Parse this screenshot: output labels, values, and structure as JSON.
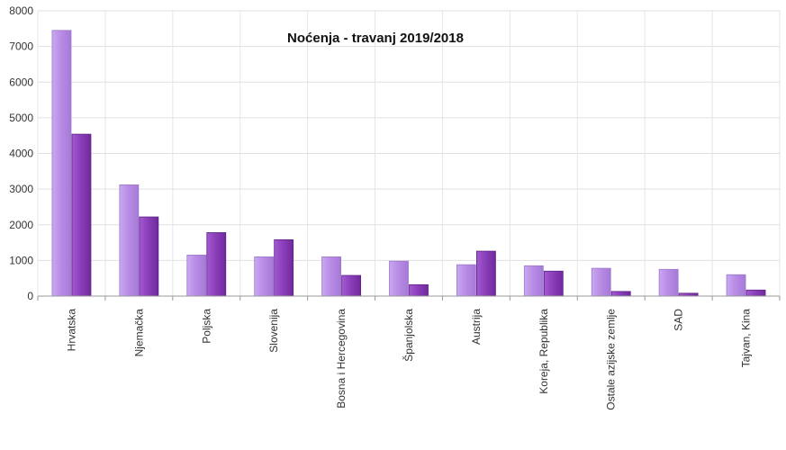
{
  "chart_data": {
    "type": "bar",
    "title": "Noćenja - travanj 2019/2018",
    "xlabel": "",
    "ylabel": "",
    "ylim": [
      0,
      8000
    ],
    "yticks": [
      0,
      1000,
      2000,
      3000,
      4000,
      5000,
      6000,
      7000,
      8000
    ],
    "grid": true,
    "legend": "none",
    "categories": [
      "Hrvatska",
      "Njemačka",
      "Poljska",
      "Slovenija",
      "Bosna i Hercegovina",
      "Španjolska",
      "Austrija",
      "Koreja, Republika",
      "Ostale azijske zemlje",
      "SAD",
      "Tajvan, Kina"
    ],
    "series": [
      {
        "values": [
          7450,
          3120,
          1150,
          1100,
          1100,
          980,
          880,
          850,
          780,
          750,
          600
        ],
        "color": "#c7a4ef"
      },
      {
        "values": [
          4540,
          2220,
          1780,
          1580,
          580,
          320,
          1260,
          700,
          130,
          80,
          170
        ],
        "color": "#8a3fb8"
      }
    ]
  }
}
